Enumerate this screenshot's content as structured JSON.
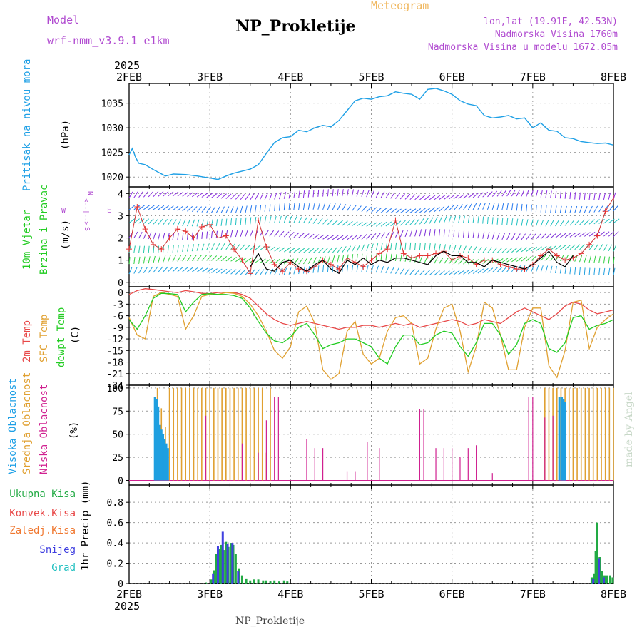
{
  "header": {
    "model_label": "Model",
    "model_name": "wrf-nmm_v3.9.1 e1km",
    "subtitle": "Meteogram",
    "station": "NP_Prokletije",
    "coords": "lon,lat (19.91E, 42.53N)",
    "elevation": "Nadmorska Visina 1760m",
    "model_elevation": "Nadmorska Visina u modelu 1672.05m",
    "footer": "NP_Prokletije",
    "watermark": "made by Angel",
    "year_top": "2025",
    "year_bottom": "2025"
  },
  "colors": {
    "pressure": "#1ea0e6",
    "temp2m": "#e84848",
    "sfc": "#e0a030",
    "dewpt": "#22cc22",
    "high": "#1e9fe0",
    "mid": "#e0a030",
    "low": "#d02090",
    "precip_total": "#22aa44",
    "precip_conv": "#e84848",
    "precip_frz": "#f07830",
    "snow": "#4040e0",
    "graupel": "#20c0c0",
    "model": "#c050d0"
  },
  "chart_data": [
    {
      "type": "line",
      "id": "pressure",
      "title": "Pritisak na nivou mora",
      "ylabel": "(hPa)",
      "ylim": [
        1018,
        1039
      ],
      "yticks": [
        "1020",
        "1025",
        "1030",
        "1035"
      ],
      "x_days": [
        "2FEB",
        "3FEB",
        "4FEB",
        "5FEB",
        "6FEB",
        "7FEB",
        "8FEB"
      ],
      "grid": true,
      "series": [
        {
          "x": [
            0,
            0.04,
            0.08,
            0.12,
            0.2,
            0.3,
            0.45,
            0.55,
            0.7,
            0.85,
            1.0,
            1.1,
            1.2,
            1.3,
            1.4,
            1.5,
            1.6,
            1.7,
            1.8,
            1.9,
            2.0,
            2.1,
            2.2,
            2.3,
            2.4,
            2.5,
            2.6,
            2.7,
            2.8,
            2.9,
            3.0,
            3.1,
            3.2,
            3.3,
            3.4,
            3.5,
            3.6,
            3.7,
            3.8,
            3.9,
            4.0,
            4.1,
            4.2,
            4.3,
            4.4,
            4.5,
            4.6,
            4.7,
            4.8,
            4.9,
            5.0,
            5.1,
            5.2,
            5.3,
            5.4,
            5.5,
            5.6,
            5.7,
            5.8,
            5.9,
            6.0
          ],
          "values": [
            1024.5,
            1025.8,
            1024.0,
            1022.8,
            1022.5,
            1021.5,
            1020.2,
            1020.6,
            1020.5,
            1020.2,
            1019.8,
            1019.5,
            1020.2,
            1020.8,
            1021.2,
            1021.6,
            1022.5,
            1024.8,
            1027.0,
            1028.0,
            1028.2,
            1029.5,
            1029.2,
            1030.0,
            1030.5,
            1030.2,
            1031.5,
            1033.5,
            1035.5,
            1036.0,
            1035.8,
            1036.3,
            1036.5,
            1037.3,
            1037.0,
            1036.8,
            1035.8,
            1037.8,
            1038.0,
            1037.5,
            1036.8,
            1035.5,
            1034.8,
            1034.5,
            1032.5,
            1032.0,
            1032.2,
            1032.5,
            1031.8,
            1032.0,
            1030.0,
            1031.0,
            1029.5,
            1029.3,
            1028.0,
            1027.8,
            1027.2,
            1027.0,
            1026.8,
            1026.9,
            1026.5
          ]
        }
      ]
    },
    {
      "type": "line",
      "id": "wind",
      "title": "10m Vjetar",
      "title2": "Brzina i Pravac",
      "ylabel": "(m/s)",
      "ylim": [
        -0.2,
        4.3
      ],
      "yticks": [
        "0",
        "1",
        "2",
        "3",
        "4"
      ],
      "compass": {
        "n": "N",
        "s": "S",
        "w": "W",
        "e": "E",
        "arrows": "<--|-->"
      },
      "series": [
        {
          "name": "10m",
          "x": [
            0,
            0.1,
            0.2,
            0.3,
            0.4,
            0.5,
            0.6,
            0.7,
            0.8,
            0.9,
            1.0,
            1.1,
            1.2,
            1.3,
            1.4,
            1.5,
            1.6,
            1.7,
            1.8,
            1.9,
            2.0,
            2.1,
            2.2,
            2.3,
            2.4,
            2.5,
            2.6,
            2.7,
            2.8,
            2.9,
            3.0,
            3.1,
            3.2,
            3.3,
            3.4,
            3.5,
            3.6,
            3.7,
            3.8,
            3.9,
            4.0,
            4.1,
            4.2,
            4.3,
            4.4,
            4.5,
            4.6,
            4.7,
            4.8,
            4.9,
            5.0,
            5.1,
            5.2,
            5.3,
            5.4,
            5.5,
            5.6,
            5.7,
            5.8,
            5.9,
            6.0
          ],
          "values": [
            1.5,
            3.4,
            2.4,
            1.7,
            1.5,
            2.0,
            2.4,
            2.3,
            2.0,
            2.5,
            2.6,
            2.0,
            2.1,
            1.5,
            1.0,
            0.4,
            2.8,
            1.6,
            0.8,
            0.5,
            0.9,
            0.6,
            0.5,
            0.7,
            1.0,
            0.8,
            0.6,
            1.1,
            0.9,
            0.7,
            1.0,
            1.3,
            1.5,
            2.8,
            1.3,
            1.1,
            1.2,
            1.2,
            1.3,
            1.4,
            1.0,
            1.2,
            1.1,
            0.8,
            1.0,
            1.0,
            0.8,
            0.7,
            0.6,
            0.6,
            0.8,
            1.2,
            1.5,
            1.2,
            1.0,
            1.1,
            1.3,
            1.7,
            2.1,
            3.2,
            3.8
          ]
        },
        {
          "name": "gust",
          "x": [
            1.5,
            1.6,
            1.7,
            1.8,
            1.9,
            2.0,
            2.1,
            2.2,
            2.3,
            2.4,
            2.5,
            2.6,
            2.7,
            2.8,
            2.9,
            3.0,
            3.1,
            3.2,
            3.3,
            3.4,
            3.5,
            3.6,
            3.7,
            3.8,
            3.9,
            4.0,
            4.1,
            4.2,
            4.3,
            4.4,
            4.5,
            4.6,
            4.7,
            4.8,
            4.9,
            5.0,
            5.1,
            5.2,
            5.3,
            5.4,
            5.5
          ],
          "values": [
            0.7,
            1.3,
            0.6,
            0.5,
            0.9,
            1.0,
            0.7,
            0.5,
            0.8,
            1.0,
            0.6,
            0.4,
            1.0,
            0.8,
            1.1,
            0.8,
            1.0,
            0.9,
            1.1,
            1.1,
            1.0,
            0.9,
            0.8,
            1.2,
            1.4,
            1.2,
            1.2,
            0.9,
            0.9,
            0.7,
            1.0,
            0.9,
            0.8,
            0.7,
            0.6,
            0.8,
            1.1,
            1.4,
            0.9,
            0.7,
            1.2
          ]
        }
      ]
    },
    {
      "type": "line",
      "id": "temperature",
      "labels": [
        "2m Temp",
        "SFC Temp",
        "dewpt Temp"
      ],
      "ylabel": "(C)",
      "ylim": [
        -24,
        1.5
      ],
      "yticks": [
        "0",
        "-3",
        "-6",
        "-9",
        "-12",
        "-15",
        "-18",
        "-21",
        "-24"
      ],
      "x": [
        0,
        0.1,
        0.2,
        0.3,
        0.4,
        0.5,
        0.6,
        0.7,
        0.8,
        0.9,
        1.0,
        1.1,
        1.2,
        1.3,
        1.4,
        1.5,
        1.6,
        1.7,
        1.8,
        1.9,
        2.0,
        2.1,
        2.2,
        2.3,
        2.4,
        2.5,
        2.6,
        2.7,
        2.8,
        2.9,
        3.0,
        3.1,
        3.2,
        3.3,
        3.4,
        3.5,
        3.6,
        3.7,
        3.8,
        3.9,
        4.0,
        4.1,
        4.2,
        4.3,
        4.4,
        4.5,
        4.6,
        4.7,
        4.8,
        4.9,
        5.0,
        5.1,
        5.2,
        5.3,
        5.4,
        5.5,
        5.6,
        5.7,
        5.8,
        5.9,
        6.0
      ],
      "series": [
        {
          "name": "2m Temp",
          "values": [
            -0.5,
            0.5,
            1.0,
            0.8,
            0.5,
            0.2,
            0.0,
            0.5,
            0.2,
            -0.2,
            -0.3,
            0.0,
            0.1,
            0.0,
            -0.5,
            -1.5,
            -3.5,
            -5.5,
            -7.0,
            -8.0,
            -8.5,
            -8.0,
            -7.5,
            -8.0,
            -8.5,
            -9.0,
            -9.5,
            -9.0,
            -9.0,
            -8.5,
            -8.5,
            -9.0,
            -8.5,
            -8.0,
            -8.5,
            -8.0,
            -9.0,
            -8.5,
            -8.0,
            -7.5,
            -7.0,
            -7.5,
            -8.5,
            -8.0,
            -7.0,
            -7.5,
            -8.0,
            -6.5,
            -5.0,
            -4.0,
            -5.0,
            -6.0,
            -7.0,
            -5.5,
            -3.5,
            -2.5,
            -3.0,
            -4.5,
            -5.5,
            -5.0,
            -4.5
          ]
        },
        {
          "name": "SFC Temp",
          "values": [
            -6.5,
            -11.0,
            -12.0,
            -1.0,
            0.0,
            -0.5,
            -1.0,
            -9.5,
            -6.0,
            -1.0,
            -0.5,
            -0.5,
            0.0,
            -0.2,
            -1.0,
            -3.0,
            -6.0,
            -10.0,
            -15.0,
            -17.0,
            -14.0,
            -5.0,
            -3.5,
            -8.0,
            -20.0,
            -22.5,
            -21.0,
            -10.0,
            -7.5,
            -16.0,
            -18.5,
            -17.0,
            -10.0,
            -6.5,
            -6.0,
            -8.0,
            -18.5,
            -17.0,
            -9.5,
            -4.0,
            -3.0,
            -10.0,
            -20.5,
            -14.0,
            -2.5,
            -4.0,
            -11.0,
            -20.0,
            -20.0,
            -9.0,
            -4.0,
            -4.0,
            -19.0,
            -22.0,
            -15.0,
            -2.5,
            -2.0,
            -14.5,
            -9.0,
            -7.0,
            -5.5
          ]
        },
        {
          "name": "dewpt Temp",
          "values": [
            -7.0,
            -9.5,
            -6.0,
            -1.5,
            -0.2,
            -0.3,
            -0.5,
            -5.0,
            -2.5,
            -0.5,
            -0.3,
            -0.5,
            -0.5,
            -0.8,
            -1.5,
            -4.0,
            -7.5,
            -10.5,
            -12.5,
            -13.0,
            -11.5,
            -9.0,
            -8.0,
            -11.0,
            -14.5,
            -13.5,
            -13.0,
            -12.0,
            -12.0,
            -13.0,
            -14.0,
            -17.0,
            -18.5,
            -14.0,
            -11.0,
            -11.0,
            -13.5,
            -13.0,
            -11.0,
            -10.0,
            -10.5,
            -14.0,
            -16.5,
            -13.0,
            -8.0,
            -8.0,
            -11.0,
            -16.0,
            -13.5,
            -8.0,
            -7.0,
            -8.0,
            -14.5,
            -15.5,
            -13.0,
            -6.5,
            -6.0,
            -9.5,
            -8.5,
            -8.0,
            -7.0
          ]
        }
      ]
    },
    {
      "type": "bar",
      "id": "cloud",
      "labels": [
        "Visoka Oblacnost",
        "Srednja Oblacnost",
        "Niska Oblacnost"
      ],
      "ylabel": "(%)",
      "ylim": [
        -5,
        103
      ],
      "yticks": [
        "0",
        "25",
        "50",
        "75",
        "100"
      ],
      "series": [
        {
          "name": "Visoka Oblacnost",
          "x": [
            0.32,
            0.34,
            0.36,
            0.38,
            0.4,
            0.42,
            0.44,
            0.46,
            0.48,
            5.33,
            5.36,
            5.38,
            5.4
          ],
          "values": [
            90,
            88,
            80,
            60,
            55,
            50,
            45,
            40,
            35,
            90,
            90,
            88,
            85
          ]
        },
        {
          "name": "Srednja Oblacnost",
          "x": [
            0.35,
            0.4,
            0.45,
            0.5,
            0.55,
            0.6,
            0.65,
            0.7,
            0.75,
            0.8,
            0.85,
            0.9,
            0.95,
            1.0,
            1.05,
            1.1,
            1.15,
            1.2,
            1.25,
            1.3,
            1.35,
            1.4,
            1.45,
            1.5,
            1.55,
            1.6,
            1.65,
            1.7,
            1.75,
            5.15,
            5.2,
            5.25,
            5.3,
            5.35,
            5.4,
            5.45,
            5.5,
            5.55,
            5.6,
            5.65,
            5.7,
            5.75,
            5.8,
            5.85,
            5.9,
            5.95,
            6.0
          ],
          "values": [
            100,
            78,
            58,
            100,
            100,
            100,
            100,
            100,
            100,
            100,
            100,
            100,
            100,
            100,
            100,
            100,
            100,
            100,
            100,
            100,
            100,
            100,
            100,
            100,
            100,
            100,
            100,
            30,
            100,
            100,
            100,
            100,
            100,
            100,
            100,
            100,
            100,
            100,
            100,
            100,
            100,
            100,
            100,
            100,
            100,
            100,
            100
          ]
        },
        {
          "name": "Niska Oblacnost",
          "x": [
            0.95,
            1.4,
            1.6,
            1.7,
            1.8,
            1.85,
            2.2,
            2.3,
            2.4,
            2.7,
            2.8,
            2.95,
            3.1,
            3.6,
            3.65,
            3.8,
            3.9,
            4.0,
            4.1,
            4.2,
            4.3,
            4.5,
            4.95,
            5.0,
            5.15,
            5.25
          ],
          "values": [
            70,
            40,
            30,
            65,
            90,
            90,
            45,
            35,
            35,
            10,
            10,
            42,
            35,
            77,
            77,
            35,
            35,
            35,
            25,
            35,
            38,
            8,
            90,
            90,
            68,
            70
          ]
        }
      ]
    },
    {
      "type": "bar",
      "id": "precip",
      "labels": [
        "Ukupna Kisa",
        "Konvek.Kisa",
        "Zaledj.Kisa",
        "Snijeg",
        "Grad"
      ],
      "ylabel": "1hr Precip (mm)",
      "ylim": [
        0,
        0.97
      ],
      "yticks": [
        "0",
        "0.2",
        "0.4",
        "0.6",
        "0.8"
      ],
      "x_days": [
        "2FEB",
        "3FEB",
        "4FEB",
        "5FEB",
        "6FEB",
        "7FEB",
        "8FEB"
      ],
      "series": [
        {
          "name": "Ukupna Kisa",
          "x": [
            0.95,
            1.02,
            1.05,
            1.08,
            1.11,
            1.14,
            1.17,
            1.2,
            1.23,
            1.26,
            1.29,
            1.32,
            1.36,
            1.4,
            1.45,
            1.5,
            1.55,
            1.6,
            1.66,
            1.7,
            1.75,
            1.8,
            1.86,
            1.92,
            1.96,
            5.73,
            5.76,
            5.78,
            5.8,
            5.83,
            5.86,
            5.89,
            5.92,
            5.96,
            5.99
          ],
          "values": [
            0.01,
            0.04,
            0.13,
            0.29,
            0.34,
            0.38,
            0.33,
            0.41,
            0.36,
            0.4,
            0.38,
            0.29,
            0.15,
            0.08,
            0.05,
            0.03,
            0.04,
            0.04,
            0.03,
            0.03,
            0.02,
            0.03,
            0.02,
            0.03,
            0.02,
            0.06,
            0.1,
            0.32,
            0.6,
            0.26,
            0.12,
            0.08,
            0.08,
            0.08,
            0.06
          ]
        },
        {
          "name": "Snijeg",
          "x": [
            1.04,
            1.1,
            1.16,
            1.22,
            1.28,
            1.35,
            5.75,
            5.82,
            5.88
          ],
          "values": [
            0.1,
            0.37,
            0.51,
            0.39,
            0.4,
            0.12,
            0.05,
            0.25,
            0.06
          ]
        }
      ]
    }
  ]
}
